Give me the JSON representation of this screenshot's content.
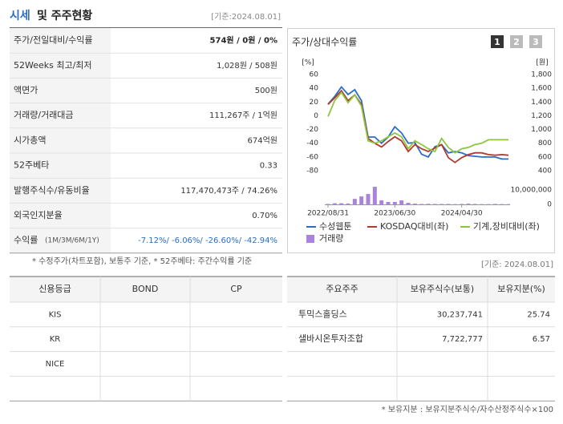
{
  "header": {
    "title_highlight": "시세",
    "title_rest": "및 주주현황",
    "date": "[기준:2024.08.01]"
  },
  "price_table": {
    "rows": [
      [
        "주가/전일대비/수익률",
        "574원 / 0원 / 0%"
      ],
      [
        "52Weeks 최고/최저",
        "1,028원 / 508원"
      ],
      [
        "액면가",
        "500원"
      ],
      [
        "거래량/거래대금",
        "111,267주 / 1억원"
      ],
      [
        "시가총액",
        "674억원"
      ],
      [
        "52주베타",
        "0.33"
      ],
      [
        "발행주식수/유동비율",
        "117,470,473주 / 74.26%"
      ],
      [
        "외국인지분율",
        "0.70%"
      ],
      [
        "수익률",
        "(1M/3M/6M/1Y)",
        "-7.12%/ -6.06%/ -26.60%/ -42.94%"
      ]
    ]
  },
  "note": "* 수정주가(차트포함), 보통주 기준, * 52주베타: 주간수익률 기준",
  "chart_controls": [
    "1",
    "2",
    "3"
  ],
  "chart_data": {
    "type": "line",
    "title": "주가/상대수익률",
    "ylabel": "[%]",
    "y2label": "[원]",
    "categories": [
      "2022/08/31",
      null,
      null,
      null,
      null,
      null,
      null,
      null,
      null,
      null,
      "2023/06/30",
      null,
      null,
      null,
      null,
      null,
      null,
      null,
      null,
      null,
      "2024/04/30",
      null,
      null,
      null,
      null,
      null,
      null,
      null
    ],
    "ylim": [
      -80,
      60
    ],
    "yticks": [
      60,
      40,
      20,
      0,
      -20,
      -40,
      -60,
      -80
    ],
    "y2lim": [
      400,
      1800
    ],
    "y2ticks": [
      {
        "value": 1800,
        "label": "1,800"
      },
      {
        "value": 1600,
        "label": "1,600"
      },
      {
        "value": 1400,
        "label": "1,400"
      },
      {
        "value": 1200,
        "label": "1,200"
      },
      {
        "value": 1000,
        "label": "1,000"
      },
      800,
      600,
      400
    ],
    "y3lim": [
      0,
      15000000
    ],
    "y3ticks": [
      {
        "value": 10000000,
        "label": "10,000,000"
      },
      0
    ],
    "grid": false,
    "series": [
      {
        "name": "수성웹툰",
        "color": "#2b6cc4",
        "axis": "y2",
        "values": [
          1370,
          1480,
          1620,
          1510,
          1580,
          1420,
          890,
          890,
          800,
          890,
          1040,
          950,
          800,
          810,
          640,
          600,
          750,
          780,
          660,
          680,
          660,
          620,
          610,
          600,
          600,
          600,
          570,
          570
        ]
      },
      {
        "name": "KOSDAQ대비(좌)",
        "color": "#b03a2e",
        "values": [
          16.5,
          26,
          36.5,
          22,
          30.5,
          16.5,
          -33,
          -40,
          -45.5,
          -37.5,
          -30.5,
          -36.5,
          -52,
          -42,
          -48,
          -52,
          -47,
          -42,
          -61,
          -68,
          -61,
          -56.5,
          -54,
          -54,
          -56.5,
          -57.5,
          -56.5,
          -57.5
        ]
      },
      {
        "name": "기계,장비대비(좌)",
        "color": "#8cc63f",
        "values": [
          -1,
          22,
          34,
          19,
          30.5,
          14,
          -36.5,
          -40,
          -36.5,
          -30.5,
          -25,
          -30.5,
          -48,
          -36.5,
          -42,
          -48,
          -52,
          -33,
          -46,
          -54,
          -48,
          -46,
          -42,
          -40,
          -35,
          -35,
          -35,
          -35
        ]
      },
      {
        "name": "거래량",
        "type": "bar",
        "color": "#a983dc",
        "axis": "y3",
        "values": [
          300000,
          800000,
          800000,
          600000,
          3800000,
          5500000,
          7200000,
          12200000,
          2800000,
          1700000,
          1700000,
          2800000,
          1100000,
          500000,
          300000,
          400000,
          300000,
          300000,
          300000,
          200000,
          300000,
          500000,
          300000,
          200000,
          200000,
          300000,
          200000,
          200000
        ]
      }
    ]
  },
  "holders_date": "[기준: 2024.08.01]",
  "credit_table": {
    "headers": [
      "신용등급",
      "BOND",
      "CP"
    ],
    "rows": [
      "KIS",
      "KR",
      "NICE"
    ]
  },
  "holders_table": {
    "headers": [
      "주요주주",
      "보유주식수(보통)",
      "보유지분(%)"
    ],
    "rows": [
      [
        "투믹스홀딩스",
        "30,237,741",
        "25.74"
      ],
      [
        "샐바시온투자조합",
        "7,722,777",
        "6.57"
      ]
    ]
  },
  "footnote": "* 보유지분 : 보유지분주식수/자수산정주식수×100"
}
